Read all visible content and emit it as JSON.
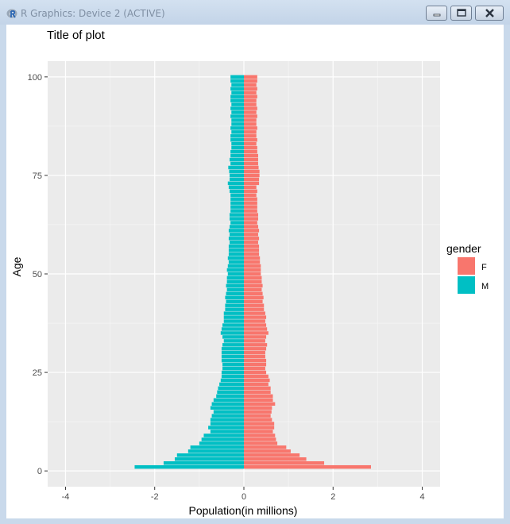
{
  "window": {
    "title": "R Graphics: Device 2 (ACTIVE)"
  },
  "colors": {
    "female": "#F8766D",
    "male": "#00BFC4",
    "panel": "#EBEBEB",
    "grid_major": "#FFFFFF"
  },
  "chart_data": {
    "type": "bar",
    "orientation": "horizontal",
    "title": "Title of plot",
    "xlabel": "Population(in millions)",
    "ylabel": "Age",
    "xlim": [
      -4.4,
      4.4
    ],
    "ylim": [
      -4,
      104
    ],
    "xticks": [
      -4,
      -2,
      0,
      2,
      4
    ],
    "yticks": [
      0,
      25,
      50,
      75,
      100
    ],
    "grid": true,
    "legend": {
      "title": "gender",
      "position": "right",
      "entries": [
        "F",
        "M"
      ]
    },
    "ages": [
      0,
      1,
      2,
      3,
      4,
      5,
      6,
      7,
      8,
      9,
      10,
      11,
      12,
      13,
      14,
      15,
      16,
      17,
      18,
      19,
      20,
      21,
      22,
      23,
      24,
      25,
      26,
      27,
      28,
      29,
      30,
      31,
      32,
      33,
      34,
      35,
      36,
      37,
      38,
      39,
      40,
      41,
      42,
      43,
      44,
      45,
      46,
      47,
      48,
      49,
      50,
      51,
      52,
      53,
      54,
      55,
      56,
      57,
      58,
      59,
      60,
      61,
      62,
      63,
      64,
      65,
      66,
      67,
      68,
      69,
      70,
      71,
      72,
      73,
      74,
      75,
      76,
      77,
      78,
      79,
      80,
      81,
      82,
      83,
      84,
      85,
      86,
      87,
      88,
      89,
      90,
      91,
      92,
      93,
      94,
      95,
      96,
      97,
      98,
      99,
      100
    ],
    "series": [
      {
        "name": "F",
        "values": [
          0,
          2.85,
          1.8,
          1.4,
          1.25,
          1.05,
          0.95,
          0.75,
          0.72,
          0.7,
          0.65,
          0.68,
          0.68,
          0.63,
          0.6,
          0.62,
          0.63,
          0.7,
          0.65,
          0.65,
          0.6,
          0.6,
          0.55,
          0.58,
          0.55,
          0.5,
          0.48,
          0.5,
          0.5,
          0.48,
          0.48,
          0.5,
          0.52,
          0.48,
          0.5,
          0.55,
          0.52,
          0.5,
          0.48,
          0.5,
          0.48,
          0.45,
          0.45,
          0.42,
          0.44,
          0.42,
          0.4,
          0.42,
          0.4,
          0.4,
          0.38,
          0.38,
          0.38,
          0.36,
          0.36,
          0.34,
          0.34,
          0.34,
          0.32,
          0.34,
          0.32,
          0.34,
          0.32,
          0.3,
          0.32,
          0.32,
          0.3,
          0.3,
          0.3,
          0.3,
          0.28,
          0.3,
          0.28,
          0.34,
          0.34,
          0.35,
          0.35,
          0.33,
          0.32,
          0.32,
          0.32,
          0.3,
          0.3,
          0.28,
          0.3,
          0.28,
          0.28,
          0.3,
          0.28,
          0.28,
          0.3,
          0.28,
          0.3,
          0.28,
          0.28,
          0.3,
          0.28,
          0.3,
          0.28,
          0.3,
          0.3
        ]
      },
      {
        "name": "M",
        "values": [
          0,
          2.45,
          1.8,
          1.55,
          1.5,
          1.25,
          1.2,
          1.0,
          0.95,
          0.9,
          0.75,
          0.8,
          0.75,
          0.75,
          0.72,
          0.68,
          0.75,
          0.72,
          0.68,
          0.62,
          0.6,
          0.58,
          0.55,
          0.52,
          0.5,
          0.5,
          0.48,
          0.48,
          0.5,
          0.5,
          0.5,
          0.5,
          0.48,
          0.45,
          0.48,
          0.52,
          0.5,
          0.48,
          0.45,
          0.45,
          0.45,
          0.42,
          0.42,
          0.4,
          0.42,
          0.4,
          0.38,
          0.4,
          0.38,
          0.38,
          0.36,
          0.38,
          0.36,
          0.34,
          0.36,
          0.34,
          0.34,
          0.34,
          0.32,
          0.34,
          0.32,
          0.34,
          0.32,
          0.3,
          0.32,
          0.32,
          0.3,
          0.3,
          0.3,
          0.3,
          0.3,
          0.32,
          0.34,
          0.36,
          0.32,
          0.32,
          0.33,
          0.35,
          0.3,
          0.32,
          0.3,
          0.3,
          0.28,
          0.28,
          0.3,
          0.3,
          0.28,
          0.3,
          0.28,
          0.28,
          0.3,
          0.28,
          0.3,
          0.28,
          0.3,
          0.3,
          0.28,
          0.3,
          0.28,
          0.3,
          0.3
        ]
      }
    ]
  }
}
